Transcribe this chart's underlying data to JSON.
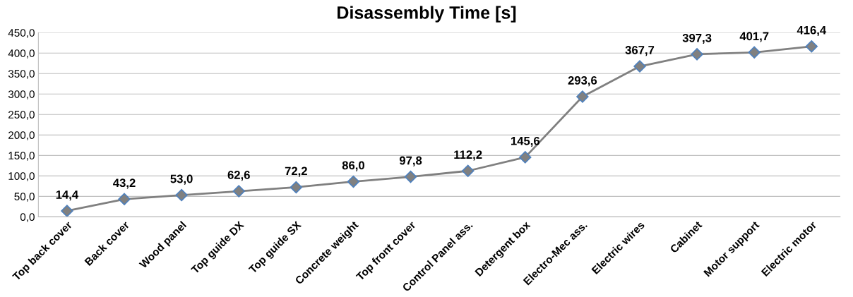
{
  "chart_data": {
    "type": "line",
    "title": "Disassembly Time [s]",
    "categories": [
      "Top back cover",
      "Back cover",
      "Wood panel",
      "Top guide DX",
      "Top guide SX",
      "Concrete weight",
      "Top front cover",
      "Control Panel ass.",
      "Detergent box",
      "Electro-Mec ass.",
      "Electric wires",
      "Cabinet",
      "Motor support",
      "Electric motor"
    ],
    "series": [
      {
        "color": "#808080",
        "values": [
          14.4,
          43.2,
          53.0,
          62.6,
          72.2,
          86.0,
          97.8,
          112.2,
          145.6,
          293.6,
          367.7,
          397.3,
          401.7,
          416.4
        ],
        "value_labels": [
          "14,4",
          "43,2",
          "53,0",
          "62,6",
          "72,2",
          "86,0",
          "97,8",
          "112,2",
          "145,6",
          "293,6",
          "367,7",
          "397,3",
          "401,7",
          "416,4"
        ]
      }
    ],
    "ylim": [
      0,
      450
    ],
    "yticks": [
      {
        "value": 0,
        "label": "0,0"
      },
      {
        "value": 50,
        "label": "50,0"
      },
      {
        "value": 100,
        "label": "100,0"
      },
      {
        "value": 150,
        "label": "150,0"
      },
      {
        "value": 200,
        "label": "200,0"
      },
      {
        "value": 250,
        "label": "250,0"
      },
      {
        "value": 300,
        "label": "300,0"
      },
      {
        "value": 350,
        "label": "350,0"
      },
      {
        "value": 400,
        "label": "400,0"
      },
      {
        "value": 450,
        "label": "450,0"
      }
    ],
    "grid": "y",
    "marker": "diamond",
    "line_style": "solid"
  }
}
